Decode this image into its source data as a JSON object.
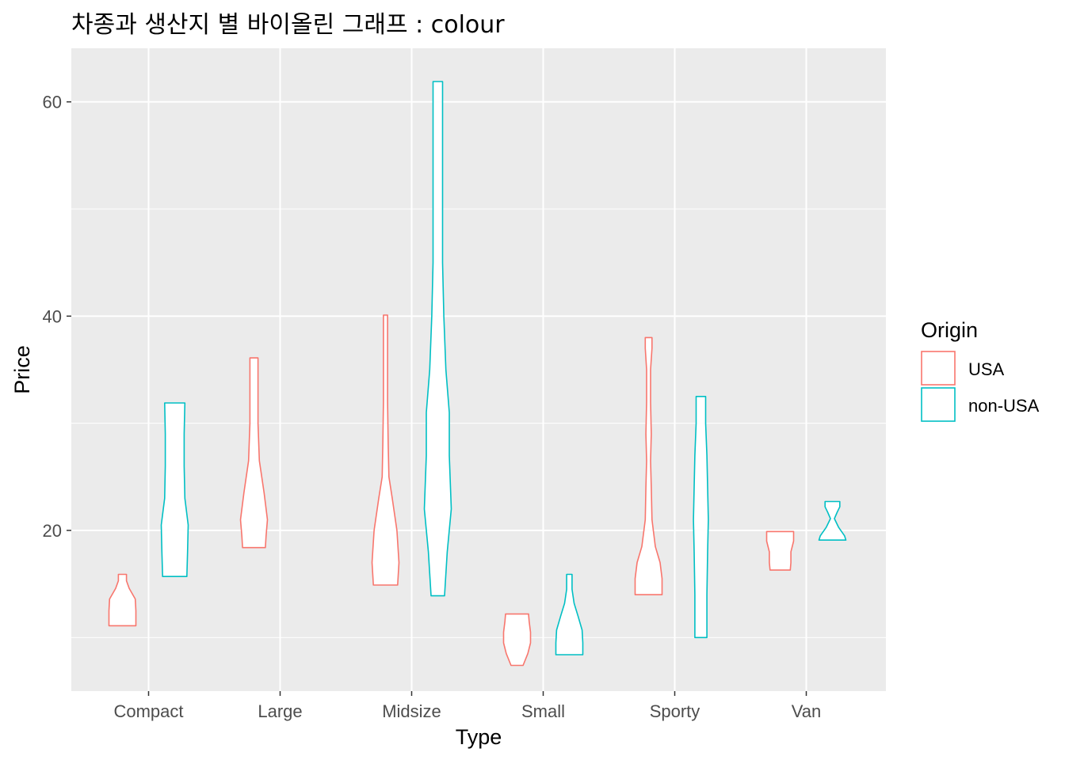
{
  "chart_data": {
    "type": "violin",
    "title": "차종과 생산지 별 바이올린 그래프 : colour",
    "xlabel": "Type",
    "ylabel": "Price",
    "categories": [
      "Compact",
      "Large",
      "Midsize",
      "Small",
      "Sporty",
      "Van"
    ],
    "y_ticks": [
      20,
      40,
      60
    ],
    "ylim": [
      5,
      65
    ],
    "grid": true,
    "legend": {
      "title": "Origin",
      "placement": "right",
      "entries": [
        {
          "name": "USA",
          "color": "#F8766D"
        },
        {
          "name": "non-USA",
          "color": "#00BFC4"
        }
      ]
    },
    "series": [
      {
        "name": "USA",
        "color": "#F8766D",
        "violins": [
          {
            "category": "Compact",
            "min": 11.1,
            "max": 15.9,
            "profile": [
              [
                11.1,
                1.0
              ],
              [
                12.5,
                1.0
              ],
              [
                13.6,
                0.95
              ],
              [
                14.6,
                0.5
              ],
              [
                15.3,
                0.3
              ],
              [
                15.9,
                0.3
              ]
            ]
          },
          {
            "category": "Large",
            "min": 18.4,
            "max": 36.1,
            "profile": [
              [
                18.4,
                0.85
              ],
              [
                19.5,
                0.9
              ],
              [
                21.0,
                1.0
              ],
              [
                23.5,
                0.75
              ],
              [
                26.5,
                0.4
              ],
              [
                30.0,
                0.3
              ],
              [
                33.0,
                0.3
              ],
              [
                36.1,
                0.3
              ]
            ]
          },
          {
            "category": "Midsize",
            "min": 14.9,
            "max": 40.1,
            "profile": [
              [
                14.9,
                0.9
              ],
              [
                17.0,
                1.0
              ],
              [
                20.0,
                0.85
              ],
              [
                23.0,
                0.5
              ],
              [
                25.0,
                0.25
              ],
              [
                28.0,
                0.2
              ],
              [
                32.0,
                0.15
              ],
              [
                36.0,
                0.15
              ],
              [
                40.1,
                0.15
              ]
            ]
          },
          {
            "category": "Small",
            "min": 7.4,
            "max": 12.2,
            "profile": [
              [
                7.4,
                0.45
              ],
              [
                8.5,
                0.8
              ],
              [
                9.5,
                1.0
              ],
              [
                10.5,
                1.0
              ],
              [
                11.5,
                0.9
              ],
              [
                12.2,
                0.85
              ]
            ]
          },
          {
            "category": "Sporty",
            "min": 14.0,
            "max": 38.0,
            "profile": [
              [
                14.0,
                1.0
              ],
              [
                15.5,
                1.0
              ],
              [
                17.0,
                0.85
              ],
              [
                18.5,
                0.5
              ],
              [
                21.0,
                0.25
              ],
              [
                24.0,
                0.2
              ],
              [
                26.5,
                0.15
              ],
              [
                29.0,
                0.2
              ],
              [
                32.0,
                0.15
              ],
              [
                35.0,
                0.15
              ],
              [
                37.0,
                0.25
              ],
              [
                38.0,
                0.25
              ]
            ]
          },
          {
            "category": "Van",
            "min": 16.3,
            "max": 19.9,
            "profile": [
              [
                16.3,
                0.75
              ],
              [
                17.0,
                0.8
              ],
              [
                18.0,
                0.8
              ],
              [
                19.0,
                1.0
              ],
              [
                19.9,
                1.0
              ]
            ]
          }
        ]
      },
      {
        "name": "non-USA",
        "color": "#00BFC4",
        "violins": [
          {
            "category": "Compact",
            "min": 15.7,
            "max": 31.9,
            "profile": [
              [
                15.7,
                0.9
              ],
              [
                18.0,
                0.95
              ],
              [
                20.5,
                1.0
              ],
              [
                23.0,
                0.75
              ],
              [
                26.0,
                0.7
              ],
              [
                29.0,
                0.7
              ],
              [
                31.9,
                0.75
              ]
            ]
          },
          {
            "category": "Large",
            "min": null,
            "max": null,
            "profile": []
          },
          {
            "category": "Midsize",
            "min": 13.9,
            "max": 61.9,
            "profile": [
              [
                13.9,
                0.5
              ],
              [
                18.0,
                0.7
              ],
              [
                22.0,
                1.0
              ],
              [
                27.0,
                0.85
              ],
              [
                31.0,
                0.85
              ],
              [
                35.0,
                0.6
              ],
              [
                40.0,
                0.45
              ],
              [
                45.0,
                0.35
              ],
              [
                50.0,
                0.35
              ],
              [
                55.0,
                0.35
              ],
              [
                61.9,
                0.35
              ]
            ]
          },
          {
            "category": "Small",
            "min": 8.4,
            "max": 15.9,
            "profile": [
              [
                8.4,
                1.0
              ],
              [
                9.5,
                1.0
              ],
              [
                10.7,
                0.95
              ],
              [
                12.0,
                0.65
              ],
              [
                13.2,
                0.35
              ],
              [
                14.5,
                0.2
              ],
              [
                15.9,
                0.2
              ]
            ]
          },
          {
            "category": "Sporty",
            "min": 10.0,
            "max": 32.5,
            "profile": [
              [
                10.0,
                0.45
              ],
              [
                14.0,
                0.45
              ],
              [
                18.0,
                0.5
              ],
              [
                21.0,
                0.55
              ],
              [
                24.0,
                0.5
              ],
              [
                27.0,
                0.45
              ],
              [
                30.0,
                0.35
              ],
              [
                32.5,
                0.35
              ]
            ]
          },
          {
            "category": "Van",
            "min": 19.1,
            "max": 22.7,
            "profile": [
              [
                19.1,
                1.0
              ],
              [
                19.5,
                0.9
              ],
              [
                20.3,
                0.45
              ],
              [
                21.1,
                0.15
              ],
              [
                21.7,
                0.35
              ],
              [
                22.2,
                0.55
              ],
              [
                22.7,
                0.55
              ]
            ]
          }
        ]
      }
    ]
  }
}
